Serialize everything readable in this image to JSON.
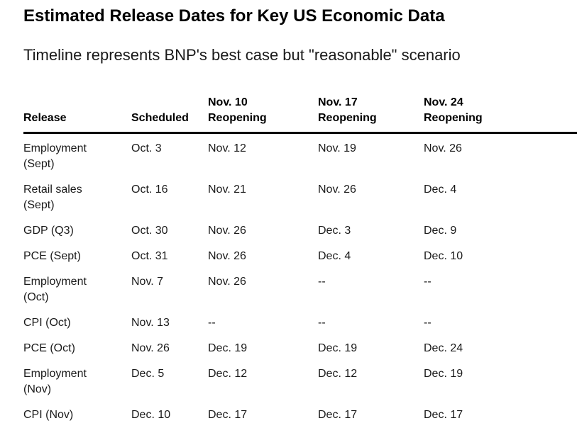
{
  "colors": {
    "background": "#ffffff",
    "text": "#000000",
    "header_rule": "#000000"
  },
  "chart_data": {
    "type": "table",
    "title": "Estimated Release Dates for Key US Economic Data",
    "subtitle": "Timeline represents BNP's best case but \"reasonable\" scenario",
    "columns": [
      {
        "top": "",
        "bottom": "Release"
      },
      {
        "top": "",
        "bottom": "Scheduled"
      },
      {
        "top": "Nov. 10",
        "bottom": "Reopening"
      },
      {
        "top": "Nov. 17",
        "bottom": "Reopening"
      },
      {
        "top": "Nov. 24",
        "bottom": "Reopening"
      }
    ],
    "rows": [
      {
        "release": "Employment (Sept)",
        "scheduled": "Oct. 3",
        "nov10": "Nov. 12",
        "nov17": "Nov. 19",
        "nov24": "Nov. 26"
      },
      {
        "release": "Retail sales (Sept)",
        "scheduled": "Oct. 16",
        "nov10": "Nov. 21",
        "nov17": "Nov. 26",
        "nov24": "Dec. 4"
      },
      {
        "release": "GDP (Q3)",
        "scheduled": "Oct. 30",
        "nov10": "Nov. 26",
        "nov17": "Dec. 3",
        "nov24": "Dec. 9"
      },
      {
        "release": "PCE (Sept)",
        "scheduled": "Oct. 31",
        "nov10": "Nov. 26",
        "nov17": "Dec. 4",
        "nov24": "Dec. 10"
      },
      {
        "release": "Employment (Oct)",
        "scheduled": "Nov. 7",
        "nov10": "Nov. 26",
        "nov17": "--",
        "nov24": "--"
      },
      {
        "release": "CPI (Oct)",
        "scheduled": "Nov. 13",
        "nov10": "--",
        "nov17": "--",
        "nov24": "--"
      },
      {
        "release": "PCE (Oct)",
        "scheduled": "Nov. 26",
        "nov10": "Dec. 19",
        "nov17": "Dec. 19",
        "nov24": "Dec. 24"
      },
      {
        "release": "Employment (Nov)",
        "scheduled": "Dec. 5",
        "nov10": "Dec. 12",
        "nov17": "Dec. 12",
        "nov24": "Dec. 19"
      },
      {
        "release": "CPI (Nov)",
        "scheduled": "Dec. 10",
        "nov10": "Dec. 17",
        "nov17": "Dec. 17",
        "nov24": "Dec. 17"
      }
    ]
  }
}
